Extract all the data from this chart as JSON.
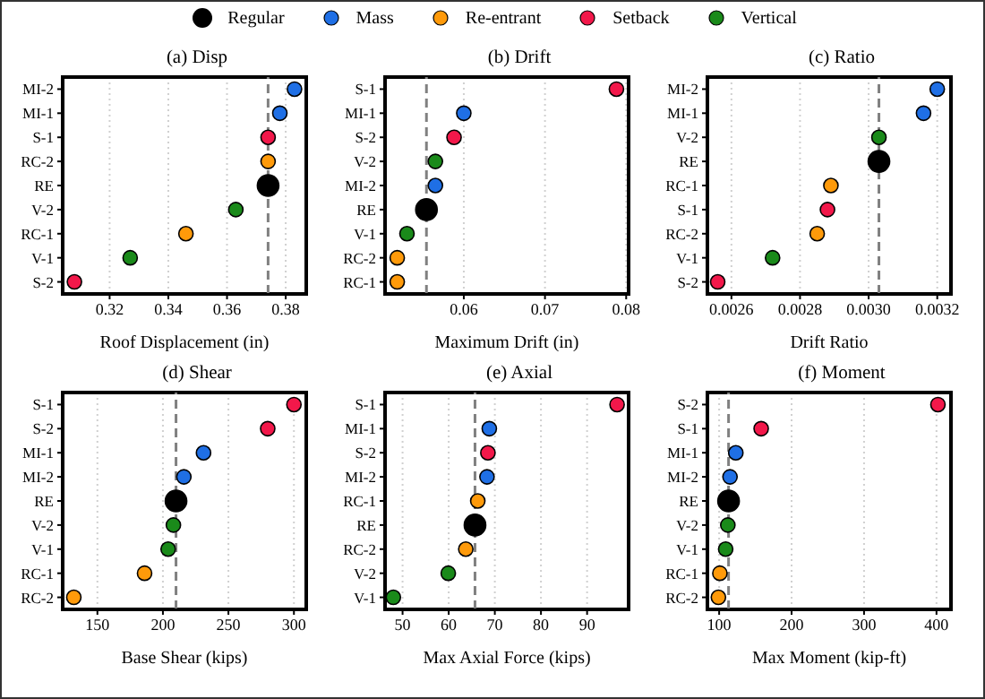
{
  "chart_data": [
    {
      "type": "scatter",
      "orientation": "horizontal",
      "title": "(a) Disp",
      "xlabel": "Roof Displacement (in)",
      "legend": "top",
      "grid": "x",
      "marker": "circle",
      "categories": [
        "MI-2",
        "MI-1",
        "S-1",
        "RC-2",
        "RE",
        "V-2",
        "RC-1",
        "V-1",
        "S-2"
      ],
      "xlim": [
        0.304,
        0.387
      ],
      "xticks": [
        0.32,
        0.34,
        0.36,
        0.38
      ],
      "ref_lines": [
        {
          "axis": "x",
          "value": 0.374,
          "color": "#808080",
          "line_style": "dashed"
        }
      ],
      "series": [
        {
          "name": "Regular",
          "color": "#000000",
          "values": [
            null,
            null,
            null,
            null,
            0.374,
            null,
            null,
            null,
            null
          ]
        },
        {
          "name": "Mass",
          "color": "#1f6fe5",
          "values": [
            0.383,
            0.378,
            null,
            null,
            null,
            null,
            null,
            null,
            null
          ]
        },
        {
          "name": "Re-entrant",
          "color": "#ff9a0a",
          "values": [
            null,
            null,
            null,
            0.374,
            null,
            null,
            0.346,
            null,
            null
          ]
        },
        {
          "name": "Setback",
          "color": "#f2184a",
          "values": [
            null,
            null,
            0.374,
            null,
            null,
            null,
            null,
            null,
            0.308
          ]
        },
        {
          "name": "Vertical",
          "color": "#1a8a1a",
          "values": [
            null,
            null,
            null,
            null,
            null,
            0.363,
            null,
            0.327,
            null
          ]
        }
      ]
    },
    {
      "type": "scatter",
      "orientation": "horizontal",
      "title": "(b) Drift",
      "xlabel": "Maximum Drift (in)",
      "grid": "x",
      "marker": "circle",
      "categories": [
        "S-1",
        "MI-1",
        "S-2",
        "V-2",
        "MI-2",
        "RE",
        "V-1",
        "RC-2",
        "RC-1"
      ],
      "xlim": [
        0.0503,
        0.0803
      ],
      "xticks": [
        0.06,
        0.07,
        0.08
      ],
      "ref_lines": [
        {
          "axis": "x",
          "value": 0.0554,
          "color": "#808080",
          "line_style": "dashed"
        }
      ],
      "series": [
        {
          "color": "#000000",
          "values": [
            null,
            null,
            null,
            null,
            null,
            0.0554,
            null,
            null,
            null
          ]
        },
        {
          "color": "#1f6fe5",
          "values": [
            null,
            0.06,
            null,
            null,
            0.0565,
            null,
            null,
            null,
            null
          ]
        },
        {
          "color": "#ff9a0a",
          "values": [
            null,
            null,
            null,
            null,
            null,
            null,
            null,
            0.0518,
            0.0518
          ]
        },
        {
          "color": "#f2184a",
          "values": [
            0.0788,
            null,
            0.0588,
            null,
            null,
            null,
            null,
            null,
            null
          ]
        },
        {
          "color": "#1a8a1a",
          "values": [
            null,
            null,
            null,
            0.0565,
            null,
            null,
            0.053,
            null,
            null
          ]
        }
      ]
    },
    {
      "type": "scatter",
      "orientation": "horizontal",
      "title": "(c) Ratio",
      "xlabel": "Drift Ratio",
      "grid": "x",
      "marker": "circle",
      "categories": [
        "MI-2",
        "MI-1",
        "V-2",
        "RE",
        "RC-1",
        "S-1",
        "RC-2",
        "V-1",
        "S-2"
      ],
      "xlim": [
        0.00253,
        0.00324
      ],
      "xticks": [
        {
          "value": 0.0026,
          "label": "0.0026"
        },
        {
          "value": 0.0028,
          "label": "0.0028"
        },
        {
          "value": 0.003,
          "label": "0.0030"
        },
        {
          "value": 0.0032,
          "label": "0.0032"
        }
      ],
      "ref_lines": [
        {
          "axis": "x",
          "value": 0.00303,
          "color": "#808080",
          "line_style": "dashed"
        }
      ],
      "series": [
        {
          "color": "#000000",
          "values": [
            null,
            null,
            null,
            0.00303,
            null,
            null,
            null,
            null,
            null
          ]
        },
        {
          "color": "#1f6fe5",
          "values": [
            0.0032,
            0.00316,
            null,
            null,
            null,
            null,
            null,
            null,
            null
          ]
        },
        {
          "color": "#ff9a0a",
          "values": [
            null,
            null,
            null,
            null,
            0.00289,
            null,
            0.00285,
            null,
            null
          ]
        },
        {
          "color": "#f2184a",
          "values": [
            null,
            null,
            null,
            null,
            null,
            0.00288,
            null,
            null,
            0.00256
          ]
        },
        {
          "color": "#1a8a1a",
          "values": [
            null,
            null,
            0.00303,
            null,
            null,
            null,
            null,
            0.00272,
            null
          ]
        }
      ]
    },
    {
      "type": "scatter",
      "orientation": "horizontal",
      "title": "(d) Shear",
      "xlabel": "Base Shear (kips)",
      "grid": "x",
      "marker": "circle",
      "categories": [
        "S-1",
        "S-2",
        "MI-1",
        "MI-2",
        "RE",
        "V-2",
        "V-1",
        "RC-1",
        "RC-2"
      ],
      "xlim": [
        123.5,
        309.4
      ],
      "xticks": [
        150,
        200,
        250,
        300
      ],
      "ref_lines": [
        {
          "axis": "x",
          "value": 210,
          "color": "#808080",
          "line_style": "dashed"
        }
      ],
      "series": [
        {
          "color": "#000000",
          "values": [
            null,
            null,
            null,
            null,
            210,
            null,
            null,
            null,
            null
          ]
        },
        {
          "color": "#1f6fe5",
          "values": [
            null,
            null,
            231,
            216,
            null,
            null,
            null,
            null,
            null
          ]
        },
        {
          "color": "#ff9a0a",
          "values": [
            null,
            null,
            null,
            null,
            null,
            null,
            null,
            186,
            132
          ]
        },
        {
          "color": "#f2184a",
          "values": [
            300,
            280,
            null,
            null,
            null,
            null,
            null,
            null,
            null
          ]
        },
        {
          "color": "#1a8a1a",
          "values": [
            null,
            null,
            null,
            null,
            null,
            208,
            204,
            null,
            null
          ]
        }
      ]
    },
    {
      "type": "scatter",
      "orientation": "horizontal",
      "title": "(e) Axial",
      "xlabel": "Max Axial Force (kips)",
      "grid": "x",
      "marker": "circle",
      "categories": [
        "S-1",
        "MI-1",
        "S-2",
        "MI-2",
        "RC-1",
        "RE",
        "RC-2",
        "V-2",
        "V-1"
      ],
      "xlim": [
        46.2,
        99.0
      ],
      "xticks": [
        50,
        60,
        70,
        80,
        90
      ],
      "ref_lines": [
        {
          "axis": "x",
          "value": 65.7,
          "color": "#808080",
          "line_style": "dashed"
        }
      ],
      "series": [
        {
          "color": "#000000",
          "values": [
            null,
            null,
            null,
            null,
            null,
            65.7,
            null,
            null,
            null
          ]
        },
        {
          "color": "#1f6fe5",
          "values": [
            null,
            68.8,
            null,
            68.3,
            null,
            null,
            null,
            null,
            null
          ]
        },
        {
          "color": "#ff9a0a",
          "values": [
            null,
            null,
            null,
            null,
            66.3,
            null,
            63.7,
            null,
            null
          ]
        },
        {
          "color": "#f2184a",
          "values": [
            96.5,
            null,
            68.5,
            null,
            null,
            null,
            null,
            null,
            null
          ]
        },
        {
          "color": "#1a8a1a",
          "values": [
            null,
            null,
            null,
            null,
            null,
            null,
            null,
            59.9,
            48.0
          ]
        }
      ]
    },
    {
      "type": "scatter",
      "orientation": "horizontal",
      "title": "(f) Moment",
      "xlabel": "Max Moment (kip-ft)",
      "grid": "x",
      "marker": "circle",
      "categories": [
        "S-2",
        "S-1",
        "MI-1",
        "MI-2",
        "RE",
        "V-2",
        "V-1",
        "RC-1",
        "RC-2"
      ],
      "xlim": [
        83.8,
        420
      ],
      "xticks": [
        100,
        200,
        300,
        400
      ],
      "ref_lines": [
        {
          "axis": "x",
          "value": 113,
          "color": "#808080",
          "line_style": "dashed"
        }
      ],
      "series": [
        {
          "color": "#000000",
          "values": [
            null,
            null,
            null,
            null,
            113,
            null,
            null,
            null,
            null
          ]
        },
        {
          "color": "#1f6fe5",
          "values": [
            null,
            null,
            123,
            115,
            null,
            null,
            null,
            null,
            null
          ]
        },
        {
          "color": "#ff9a0a",
          "values": [
            null,
            null,
            null,
            null,
            null,
            null,
            null,
            101,
            99
          ]
        },
        {
          "color": "#f2184a",
          "values": [
            402,
            158,
            null,
            null,
            null,
            null,
            null,
            null,
            null
          ]
        },
        {
          "color": "#1a8a1a",
          "values": [
            null,
            null,
            null,
            null,
            null,
            112,
            109,
            null,
            null
          ]
        }
      ]
    }
  ]
}
